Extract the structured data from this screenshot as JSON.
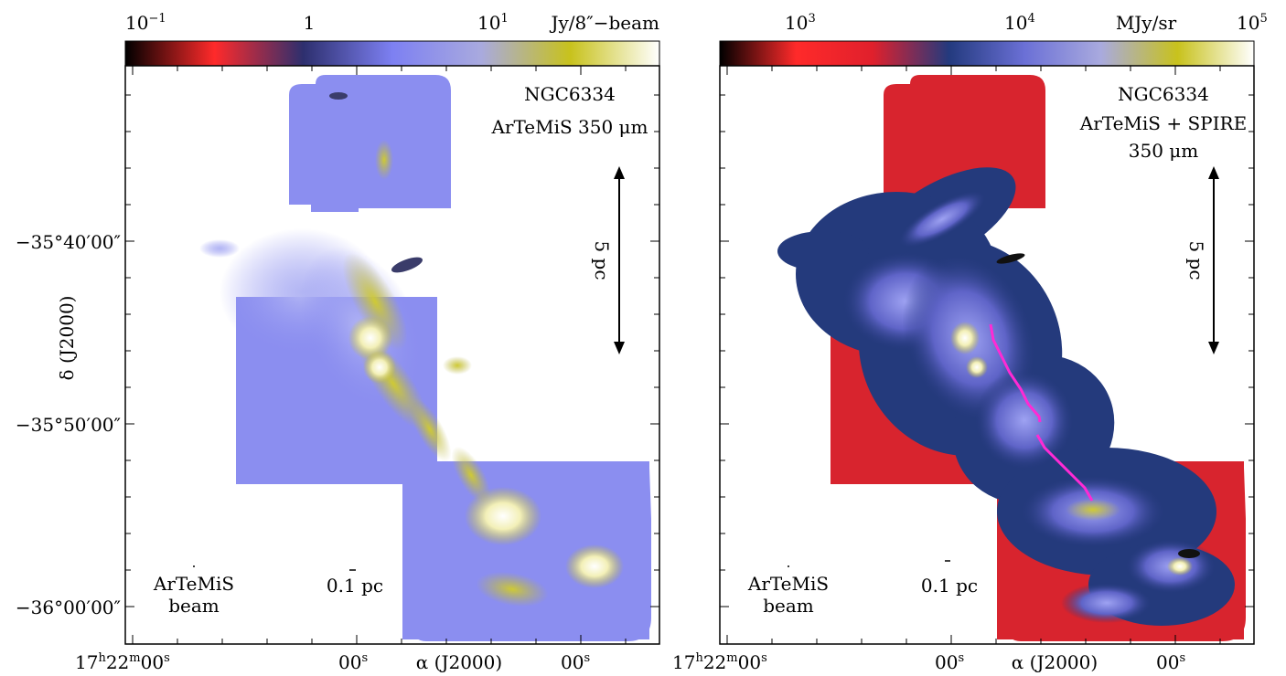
{
  "chart_data": [
    {
      "type": "heatmap",
      "object": "NGC6334",
      "title_lines": [
        "NGC6334",
        "ArTeMiS 350 μm"
      ],
      "colorbar": {
        "unit": "Jy/8″−beam",
        "scale": "log",
        "range": [
          0.1,
          12
        ],
        "ticks": [
          {
            "value": 0.1,
            "label": "10",
            "exp": "−1"
          },
          {
            "value": 1,
            "label": "1",
            "exp": ""
          },
          {
            "value": 10,
            "label": "10",
            "exp": "1"
          }
        ],
        "colors": [
          "#000000",
          "#ff2a2a",
          "#2d2f6e",
          "#7d80f2",
          "#a9aade",
          "#c8c21c",
          "#ffffff"
        ]
      },
      "ylabel": "δ (J2000)",
      "xlabel": "α (J2000)",
      "y_ticks": [
        "−35°40′00″",
        "−35°50′00″",
        "−36°00′00″"
      ],
      "x_ticks": [
        {
          "h": "17",
          "m": "22",
          "s": "00",
          "full": true
        },
        {
          "s": "00",
          "full": false
        },
        {
          "s": "00",
          "full": false
        }
      ],
      "scale_bar": {
        "label": "5 pc"
      },
      "small_scale": {
        "label": "0.1 pc"
      },
      "beam_lines": [
        "ArTeMiS",
        "beam"
      ],
      "map_background": "#8b8ef0",
      "features": [
        {
          "name": "filament-ridge",
          "color": "#c4c03a"
        },
        {
          "name": "hot-core",
          "color": "#f4f2c8"
        }
      ],
      "grid": false
    },
    {
      "type": "heatmap",
      "object": "NGC6334",
      "title_lines": [
        "NGC6334",
        "ArTeMiS + SPIRE",
        "350 μm"
      ],
      "colorbar": {
        "unit": "MJy/sr",
        "scale": "log",
        "range": [
          250,
          100000
        ],
        "ticks": [
          {
            "value": 1000,
            "label": "10",
            "exp": "3"
          },
          {
            "value": 10000,
            "label": "10",
            "exp": "4"
          },
          {
            "value": 100000,
            "label": "10",
            "exp": "5"
          }
        ],
        "colors": [
          "#000000",
          "#ff2a2a",
          "#e0202c",
          "#233a7e",
          "#6b70d6",
          "#a9aade",
          "#c8c21c",
          "#ffffff"
        ]
      },
      "xlabel": "α (J2000)",
      "x_ticks": [
        {
          "h": "17",
          "m": "22",
          "s": "00",
          "full": true
        },
        {
          "s": "00",
          "full": false
        },
        {
          "s": "00",
          "full": false
        }
      ],
      "scale_bar": {
        "label": "5 pc"
      },
      "small_scale": {
        "label": "0.1 pc"
      },
      "beam_lines": [
        "ArTeMiS",
        "beam"
      ],
      "map_background": "#d8242e",
      "filament_color": "#ff2ad4",
      "grid": false
    }
  ]
}
